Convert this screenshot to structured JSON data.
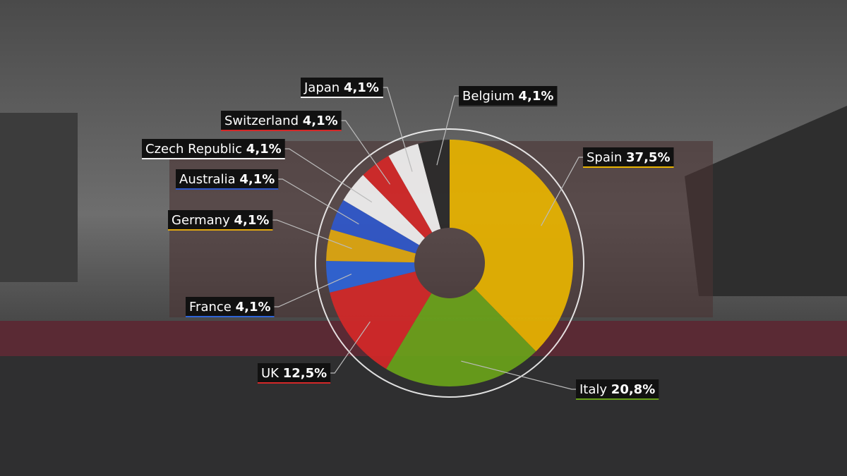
{
  "chart_data": {
    "type": "donut",
    "categories": [
      "Spain",
      "Italy",
      "UK",
      "France",
      "Germany",
      "Australia",
      "Czech Republic",
      "Switzerland",
      "Japan",
      "Belgium"
    ],
    "values": [
      37.5,
      20.8,
      12.5,
      4.1,
      4.1,
      4.1,
      4.1,
      4.1,
      4.1,
      4.1
    ],
    "value_labels": [
      "37,5%",
      "20,8%",
      "12,5%",
      "4,1%",
      "4,1%",
      "4,1%",
      "4,1%",
      "4,1%",
      "4,1%",
      "4,1%"
    ],
    "colors": [
      "#e8b400",
      "#6aa31a",
      "#d42828",
      "#2e64d8",
      "#e0a810",
      "#2f58cc",
      "#f2f2f2",
      "#d42828",
      "#f2f2f2",
      "#2a2a2a"
    ]
  }
}
